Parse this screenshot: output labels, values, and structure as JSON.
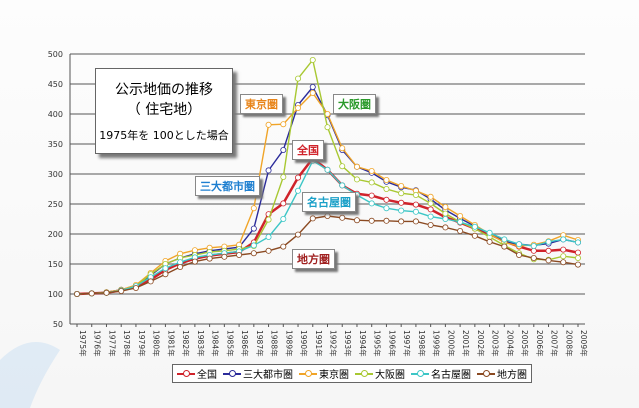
{
  "chart_data": {
    "type": "line",
    "title": "公示地価の推移",
    "subtitle": "（ 住宅地）",
    "note": "1975年を 100とした場合",
    "ylim": [
      50,
      500
    ],
    "yticks": [
      50,
      100,
      150,
      200,
      250,
      300,
      350,
      400,
      450,
      500
    ],
    "x": [
      "1975年",
      "1976年",
      "1977年",
      "1978年",
      "1979年",
      "1980年",
      "1981年",
      "1982年",
      "1983年",
      "1984年",
      "1985年",
      "1986年",
      "1987年",
      "1988年",
      "1989年",
      "1990年",
      "1991年",
      "1992年",
      "1993年",
      "1994年",
      "1995年",
      "1996年",
      "1997年",
      "1998年",
      "1999年",
      "2000年",
      "2001年",
      "2002年",
      "2003年",
      "2004年",
      "2005年",
      "2006年",
      "2007年",
      "2008年",
      "2009年"
    ],
    "grid": true,
    "legend_position": "bottom",
    "series": [
      {
        "name": "全国",
        "color": "#d0232b",
        "label_color": "#d0232b",
        "values": [
          100,
          101,
          102,
          106,
          112,
          124,
          140,
          151,
          159,
          164,
          167,
          170,
          186,
          233,
          251,
          294,
          326,
          307,
          281,
          267,
          264,
          257,
          252,
          249,
          241,
          228,
          219,
          209,
          200,
          188,
          179,
          172,
          172,
          174,
          169
        ]
      },
      {
        "name": "三大都市圏",
        "color": "#2b2b9a",
        "label_color": "#1e7fd0",
        "values": [
          100,
          101,
          103,
          107,
          114,
          131,
          150,
          160,
          167,
          172,
          175,
          178,
          209,
          306,
          340,
          415,
          445,
          398,
          340,
          312,
          302,
          287,
          278,
          273,
          258,
          240,
          226,
          213,
          200,
          187,
          183,
          181,
          184,
          191,
          186
        ]
      },
      {
        "name": "東京圏",
        "color": "#f0a428",
        "label_color": "#e8851a",
        "values": [
          100,
          101,
          103,
          107,
          115,
          135,
          155,
          167,
          173,
          177,
          179,
          182,
          243,
          382,
          383,
          410,
          435,
          400,
          343,
          312,
          305,
          290,
          280,
          272,
          262,
          245,
          230,
          215,
          200,
          186,
          180,
          182,
          188,
          198,
          190
        ]
      },
      {
        "name": "大阪圏",
        "color": "#a8c832",
        "label_color": "#2a9a2a",
        "values": [
          100,
          101,
          102,
          106,
          113,
          133,
          150,
          160,
          165,
          170,
          172,
          175,
          180,
          224,
          295,
          459,
          490,
          378,
          313,
          291,
          286,
          275,
          268,
          265,
          251,
          234,
          220,
          209,
          195,
          181,
          168,
          158,
          157,
          163,
          160
        ]
      },
      {
        "name": "名古屋圏",
        "color": "#3cc6c6",
        "label_color": "#1aa0c8",
        "values": [
          100,
          101,
          102,
          106,
          113,
          128,
          143,
          153,
          161,
          165,
          168,
          171,
          181,
          195,
          225,
          272,
          322,
          307,
          281,
          265,
          251,
          243,
          239,
          237,
          229,
          225,
          220,
          212,
          202,
          191,
          183,
          180,
          187,
          191,
          186
        ]
      },
      {
        "name": "地方圏",
        "color": "#8b4a22",
        "label_color": "#a02020",
        "values": [
          100,
          101,
          102,
          105,
          110,
          121,
          133,
          145,
          154,
          159,
          162,
          165,
          168,
          172,
          179,
          199,
          226,
          230,
          227,
          223,
          222,
          222,
          221,
          221,
          215,
          211,
          205,
          197,
          187,
          179,
          165,
          160,
          156,
          153,
          149
        ]
      }
    ]
  }
}
